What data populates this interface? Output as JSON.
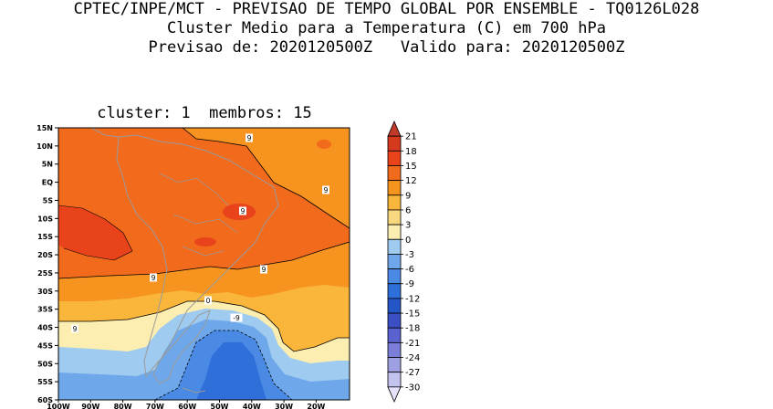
{
  "header": {
    "line1": "CPTEC/INPE/MCT - PREVISAO DE TEMPO GLOBAL POR ENSEMBLE - TQ0126L028",
    "line2": "Cluster Medio para a Temperatura (C) em 700 hPa",
    "line3": "Previsao de: 2020120500Z   Valido para: 2020120500Z"
  },
  "panel": {
    "title": "cluster: 1  membros: 15"
  },
  "map": {
    "lat_labels": [
      "15N",
      "10N",
      "5N",
      "EQ",
      "5S",
      "10S",
      "15S",
      "20S",
      "25S",
      "30S",
      "35S",
      "40S",
      "45S",
      "50S",
      "55S",
      "60S"
    ],
    "lon_labels": [
      "100W",
      "90W",
      "80W",
      "70W",
      "60W",
      "50W",
      "40W",
      "30W",
      "20W"
    ],
    "contour_labels": [
      "9",
      "9",
      "9",
      "9",
      "9",
      "0",
      "-9",
      "9"
    ]
  },
  "colorbar": {
    "labels": [
      "21",
      "18",
      "15",
      "12",
      "9",
      "6",
      "3",
      "0",
      "-3",
      "-6",
      "-9",
      "-12",
      "-15",
      "-18",
      "-21",
      "-24",
      "-27",
      "-30"
    ],
    "colors": [
      "#c0392b",
      "#d63a1e",
      "#e8431a",
      "#f26a1c",
      "#f7941f",
      "#f9b63b",
      "#f9d77e",
      "#fbeeb0",
      "#9fcbf0",
      "#6fa8ea",
      "#4a8ae4",
      "#2f6fd9",
      "#2456c8",
      "#3a4fc4",
      "#5a62cf",
      "#7a7ed8",
      "#9f9fe3",
      "#c4c2ee",
      "#e4e2f8"
    ]
  }
}
